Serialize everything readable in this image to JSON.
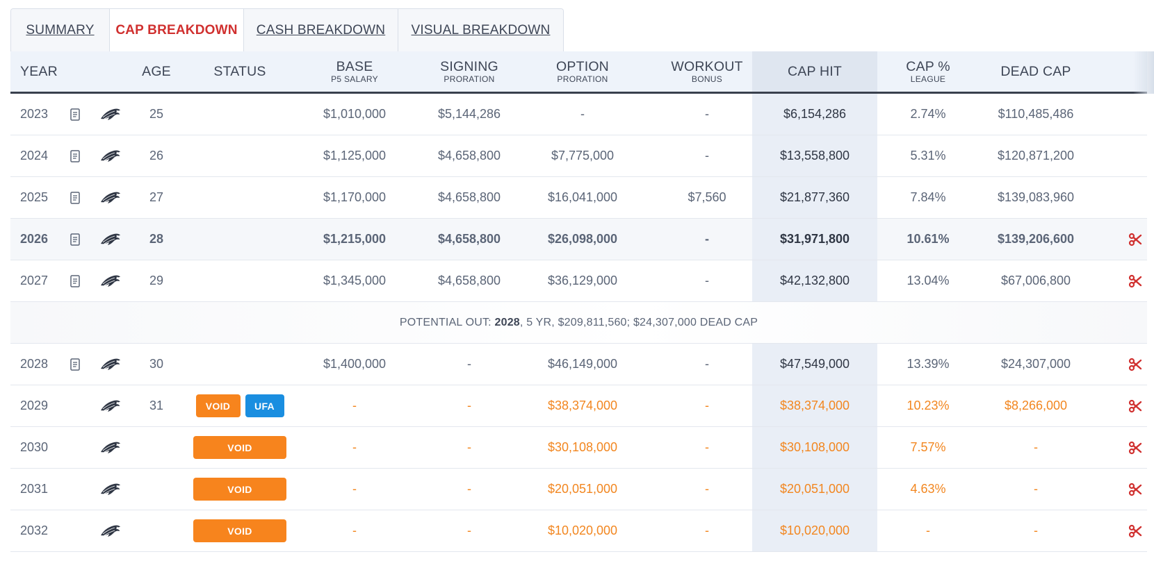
{
  "tabs": [
    {
      "label": "SUMMARY",
      "active": false
    },
    {
      "label": "CAP BREAKDOWN",
      "active": true
    },
    {
      "label": "CASH BREAKDOWN",
      "active": false
    },
    {
      "label": "VISUAL BREAKDOWN",
      "active": false
    }
  ],
  "header": {
    "year": "YEAR",
    "age": "AGE",
    "status": "STATUS",
    "base": {
      "main": "BASE",
      "sub": "P5 SALARY"
    },
    "signing": {
      "main": "SIGNING",
      "sub": "PRORATION"
    },
    "option": {
      "main": "OPTION",
      "sub": "PRORATION"
    },
    "workout": {
      "main": "WORKOUT",
      "sub": "BONUS"
    },
    "cap_hit": "CAP HIT",
    "cap_pct": {
      "main": "CAP %",
      "sub": "LEAGUE"
    },
    "dead_cap": "DEAD CAP"
  },
  "colors": {
    "active_tab": "#d0302f",
    "void_badge": "#f7841d",
    "ufa_badge": "#1a8ee0",
    "void_text": "#f2861f",
    "cut_icon": "#d0302f",
    "cap_hit_column_bg": "#e9eef6"
  },
  "icons": {
    "contract": "document-icon",
    "team": "eagles-logo-icon",
    "cut": "scissors-icon"
  },
  "rows": [
    {
      "year": "2023",
      "age": "25",
      "base": "$1,010,000",
      "signing": "$5,144,286",
      "option": "-",
      "workout": "-",
      "cap_hit": "$6,154,286",
      "cap_pct": "2.74%",
      "dead_cap": "$110,485,486"
    },
    {
      "year": "2024",
      "age": "26",
      "base": "$1,125,000",
      "signing": "$4,658,800",
      "option": "$7,775,000",
      "workout": "-",
      "cap_hit": "$13,558,800",
      "cap_pct": "5.31%",
      "dead_cap": "$120,871,200"
    },
    {
      "year": "2025",
      "age": "27",
      "base": "$1,170,000",
      "signing": "$4,658,800",
      "option": "$16,041,000",
      "workout": "$7,560",
      "cap_hit": "$21,877,360",
      "cap_pct": "7.84%",
      "dead_cap": "$139,083,960"
    },
    {
      "year": "2026",
      "age": "28",
      "base": "$1,215,000",
      "signing": "$4,658,800",
      "option": "$26,098,000",
      "workout": "-",
      "cap_hit": "$31,971,800",
      "cap_pct": "10.61%",
      "dead_cap": "$139,206,600"
    },
    {
      "year": "2027",
      "age": "29",
      "base": "$1,345,000",
      "signing": "$4,658,800",
      "option": "$36,129,000",
      "workout": "-",
      "cap_hit": "$42,132,800",
      "cap_pct": "13.04%",
      "dead_cap": "$67,006,800"
    },
    {
      "year": "2028",
      "age": "30",
      "base": "$1,400,000",
      "signing": "-",
      "option": "$46,149,000",
      "workout": "-",
      "cap_hit": "$47,549,000",
      "cap_pct": "13.39%",
      "dead_cap": "$24,307,000"
    },
    {
      "year": "2029",
      "age": "31",
      "status": [
        "VOID",
        "UFA"
      ],
      "base": "-",
      "signing": "-",
      "option": "$38,374,000",
      "workout": "-",
      "cap_hit": "$38,374,000",
      "cap_pct": "10.23%",
      "dead_cap": "$8,266,000"
    },
    {
      "year": "2030",
      "status": [
        "VOID"
      ],
      "base": "-",
      "signing": "-",
      "option": "$30,108,000",
      "workout": "-",
      "cap_hit": "$30,108,000",
      "cap_pct": "7.57%",
      "dead_cap": "-"
    },
    {
      "year": "2031",
      "status": [
        "VOID"
      ],
      "base": "-",
      "signing": "-",
      "option": "$20,051,000",
      "workout": "-",
      "cap_hit": "$20,051,000",
      "cap_pct": "4.63%",
      "dead_cap": "-"
    },
    {
      "year": "2032",
      "status": [
        "VOID"
      ],
      "base": "-",
      "signing": "-",
      "option": "$10,020,000",
      "workout": "-",
      "cap_hit": "$10,020,000",
      "cap_pct": "-",
      "dead_cap": "-"
    }
  ],
  "potential_out": {
    "prefix": "POTENTIAL OUT:",
    "year": "2028",
    "detail": ", 5 YR, $209,811,560; $24,307,000 DEAD CAP"
  }
}
